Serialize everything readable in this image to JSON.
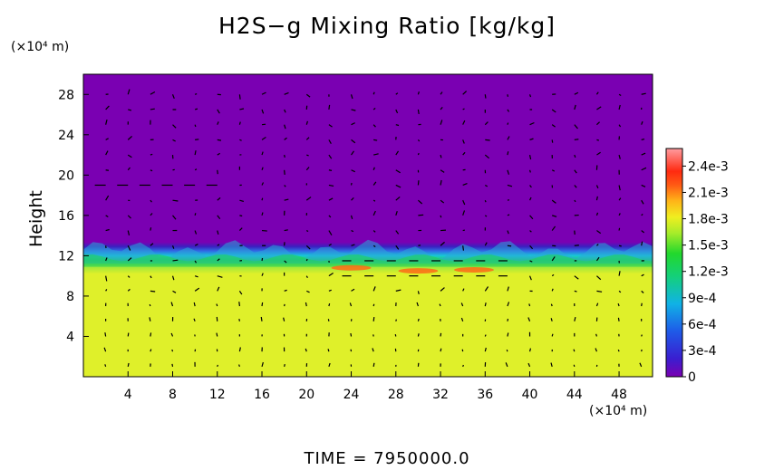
{
  "chart_data": {
    "type": "heatmap",
    "title": "H2S−g Mixing Ratio [kg/kg]",
    "xlabel": "",
    "ylabel": "Height",
    "x_unit": "(×10⁴ m)",
    "y_unit": "(×10⁴ m)",
    "xlim": [
      0,
      51
    ],
    "ylim": [
      0,
      30
    ],
    "xticks": [
      4,
      8,
      12,
      16,
      20,
      24,
      28,
      32,
      36,
      40,
      44,
      48
    ],
    "yticks": [
      4,
      8,
      12,
      16,
      20,
      24,
      28
    ],
    "colorbar": {
      "min": 0,
      "max": 0.0026,
      "ticks": [
        {
          "value": 0.0024,
          "label": "2.4e-3"
        },
        {
          "value": 0.0021,
          "label": "2.1e-3"
        },
        {
          "value": 0.0018,
          "label": "1.8e-3"
        },
        {
          "value": 0.0015,
          "label": "1.5e-3"
        },
        {
          "value": 0.0012,
          "label": "1.2e-3"
        },
        {
          "value": 0.0009,
          "label": "9e-4"
        },
        {
          "value": 0.0006,
          "label": "6e-4"
        },
        {
          "value": 0.0003,
          "label": "3e-4"
        },
        {
          "value": 0,
          "label": "0"
        }
      ]
    },
    "regions": [
      {
        "name": "lower-layer",
        "y_range": [
          0,
          11
        ],
        "value": 0.0016
      },
      {
        "name": "upper-layer",
        "y_range": [
          13,
          30
        ],
        "value": 0
      },
      {
        "name": "interface",
        "y_range": [
          11,
          13
        ],
        "value": 0.0006
      }
    ],
    "hotspots": [
      {
        "x": 24,
        "y": 10.8,
        "value": 0.002
      },
      {
        "x": 30,
        "y": 10.5,
        "value": 0.0021
      },
      {
        "x": 35,
        "y": 10.6,
        "value": 0.002
      }
    ],
    "vector_field": "wind arrows overlaid on grid"
  },
  "footer": {
    "time_label": "TIME  =  7950000.0"
  },
  "colors": {
    "upper": "#7a00b2",
    "lower": "#dff02a",
    "interface_green": "#1fd34b",
    "interface_cyan": "#16c8d6",
    "interface_blue": "#2b4fe0",
    "hot": "#ff6a16"
  }
}
